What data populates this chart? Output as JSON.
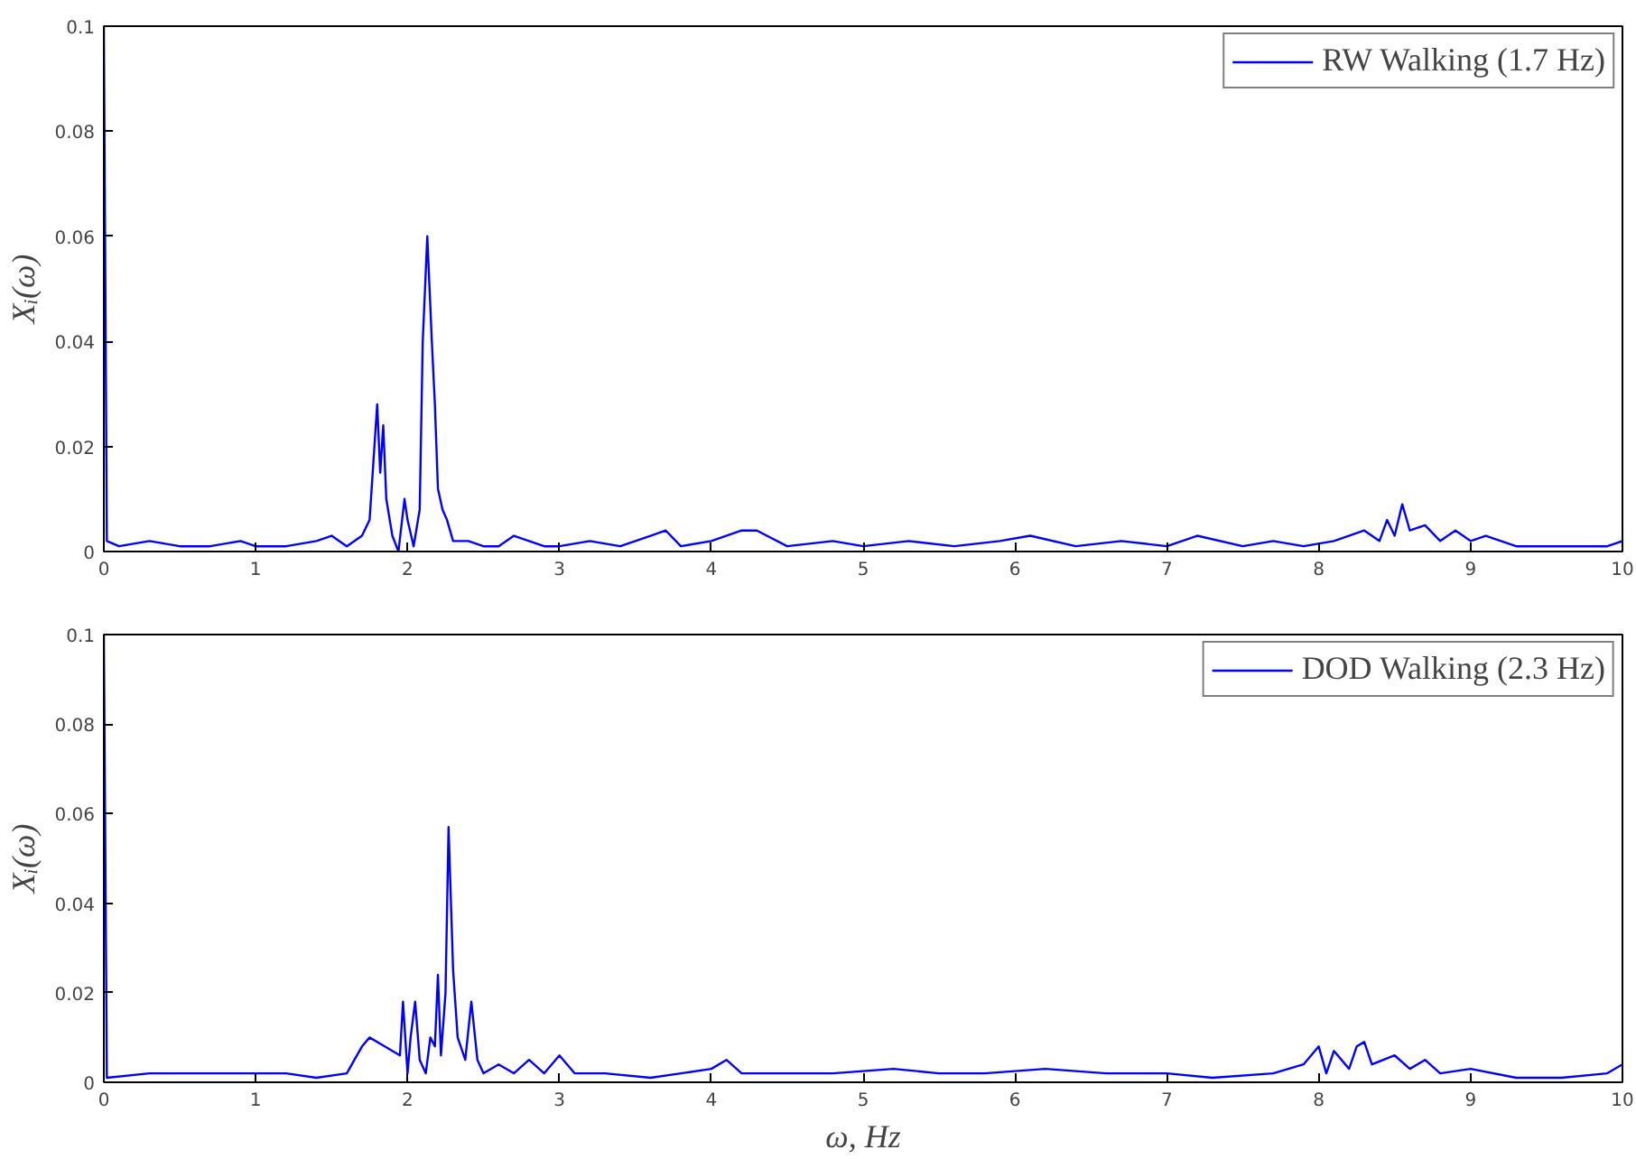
{
  "chart_data": [
    {
      "type": "line",
      "ylabel": "Xᵢ(ω)",
      "xlim": [
        0,
        10
      ],
      "ylim": [
        0,
        0.1
      ],
      "xticks": [
        0,
        1,
        2,
        3,
        4,
        5,
        6,
        7,
        8,
        9,
        10
      ],
      "yticks": [
        0,
        0.02,
        0.04,
        0.06,
        0.08,
        0.1
      ],
      "grid": false,
      "legend": "top right",
      "line_style": "solid",
      "series": [
        {
          "name": "RW Walking (1.7 Hz)",
          "color": "#0000ff",
          "x": [
            0,
            0.02,
            0.1,
            0.3,
            0.5,
            0.7,
            0.9,
            1.0,
            1.2,
            1.4,
            1.5,
            1.6,
            1.7,
            1.75,
            1.8,
            1.82,
            1.84,
            1.86,
            1.9,
            1.94,
            1.98,
            2.0,
            2.04,
            2.08,
            2.1,
            2.13,
            2.16,
            2.18,
            2.2,
            2.23,
            2.26,
            2.3,
            2.4,
            2.5,
            2.6,
            2.7,
            2.8,
            2.9,
            3.0,
            3.2,
            3.4,
            3.6,
            3.7,
            3.8,
            4.0,
            4.2,
            4.3,
            4.5,
            4.8,
            5.0,
            5.3,
            5.6,
            5.9,
            6.1,
            6.4,
            6.7,
            7.0,
            7.2,
            7.5,
            7.7,
            7.9,
            8.1,
            8.3,
            8.4,
            8.45,
            8.5,
            8.55,
            8.6,
            8.7,
            8.8,
            8.9,
            9.0,
            9.1,
            9.3,
            9.6,
            9.9,
            10
          ],
          "values": [
            0.1,
            0.002,
            0.001,
            0.002,
            0.001,
            0.001,
            0.002,
            0.001,
            0.001,
            0.002,
            0.003,
            0.001,
            0.003,
            0.006,
            0.028,
            0.015,
            0.024,
            0.01,
            0.003,
            0.0,
            0.01,
            0.006,
            0.001,
            0.008,
            0.04,
            0.06,
            0.04,
            0.028,
            0.012,
            0.008,
            0.006,
            0.002,
            0.002,
            0.001,
            0.001,
            0.003,
            0.002,
            0.001,
            0.001,
            0.002,
            0.001,
            0.003,
            0.004,
            0.001,
            0.002,
            0.004,
            0.004,
            0.001,
            0.002,
            0.001,
            0.002,
            0.001,
            0.002,
            0.003,
            0.001,
            0.002,
            0.001,
            0.003,
            0.001,
            0.002,
            0.001,
            0.002,
            0.004,
            0.002,
            0.006,
            0.003,
            0.009,
            0.004,
            0.005,
            0.002,
            0.004,
            0.002,
            0.003,
            0.001,
            0.001,
            0.001,
            0.002
          ]
        }
      ]
    },
    {
      "type": "line",
      "xlabel": "ω, Hz",
      "ylabel": "Xᵢ(ω)",
      "xlim": [
        0,
        10
      ],
      "ylim": [
        0,
        0.1
      ],
      "xticks": [
        0,
        1,
        2,
        3,
        4,
        5,
        6,
        7,
        8,
        9,
        10
      ],
      "yticks": [
        0,
        0.02,
        0.04,
        0.06,
        0.08,
        0.1
      ],
      "grid": false,
      "legend": "top right",
      "line_style": "solid",
      "series": [
        {
          "name": "DOD Walking (2.3 Hz)",
          "color": "#0000ff",
          "x": [
            0,
            0.02,
            0.3,
            0.6,
            1.0,
            1.2,
            1.4,
            1.6,
            1.65,
            1.7,
            1.75,
            1.85,
            1.95,
            1.97,
            2.0,
            2.02,
            2.05,
            2.08,
            2.12,
            2.15,
            2.18,
            2.2,
            2.22,
            2.25,
            2.27,
            2.3,
            2.33,
            2.38,
            2.42,
            2.46,
            2.5,
            2.6,
            2.7,
            2.8,
            2.9,
            3.0,
            3.1,
            3.3,
            3.6,
            3.8,
            4.0,
            4.1,
            4.2,
            4.5,
            4.8,
            5.2,
            5.5,
            5.8,
            6.2,
            6.6,
            7.0,
            7.3,
            7.7,
            7.9,
            8.0,
            8.05,
            8.1,
            8.2,
            8.25,
            8.3,
            8.35,
            8.5,
            8.6,
            8.7,
            8.8,
            9.0,
            9.3,
            9.6,
            9.9,
            10
          ],
          "values": [
            0.1,
            0.001,
            0.002,
            0.002,
            0.002,
            0.002,
            0.001,
            0.002,
            0.005,
            0.008,
            0.01,
            0.008,
            0.006,
            0.018,
            0.002,
            0.01,
            0.018,
            0.005,
            0.002,
            0.01,
            0.008,
            0.024,
            0.006,
            0.02,
            0.057,
            0.025,
            0.01,
            0.005,
            0.018,
            0.005,
            0.002,
            0.004,
            0.002,
            0.005,
            0.002,
            0.006,
            0.002,
            0.002,
            0.001,
            0.002,
            0.003,
            0.005,
            0.002,
            0.002,
            0.002,
            0.003,
            0.002,
            0.002,
            0.003,
            0.002,
            0.002,
            0.001,
            0.002,
            0.004,
            0.008,
            0.002,
            0.007,
            0.003,
            0.008,
            0.009,
            0.004,
            0.006,
            0.003,
            0.005,
            0.002,
            0.003,
            0.001,
            0.001,
            0.002,
            0.004
          ]
        }
      ]
    }
  ]
}
